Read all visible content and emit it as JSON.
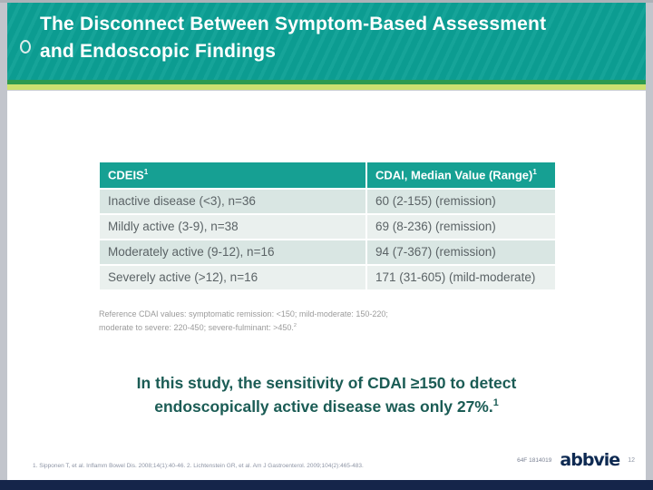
{
  "slide": {
    "title": {
      "line1": "The Disconnect Between Symptom-Based Assessment",
      "line2": "and Endoscopic Findings"
    },
    "table": {
      "columns": [
        {
          "label": "CDEIS",
          "sup": "1"
        },
        {
          "label": "CDAI, Median Value (Range)",
          "sup": "1"
        }
      ],
      "rows": [
        {
          "cdeis": "Inactive disease (<3), n=36",
          "cdai": "60 (2-155) (remission)"
        },
        {
          "cdeis": "Mildly active (3-9), n=38",
          "cdai": "69 (8-236) (remission)"
        },
        {
          "cdeis": "Moderately active (9-12), n=16",
          "cdai": "94 (7-367) (remission)"
        },
        {
          "cdeis": "Severely active (>12), n=16",
          "cdai": "171 (31-605) (mild-moderate)"
        }
      ]
    },
    "reference_note": {
      "line1": "Reference CDAI values: symptomatic remission: <150; mild-moderate: 150-220;",
      "line2": "moderate to severe: 220-450; severe-fulminant: >450.",
      "sup": "2"
    },
    "statement": {
      "line1": "In this study, the sensitivity of CDAI ≥150 to detect",
      "line2": "endoscopically active disease was only 27%.",
      "sup": "1"
    },
    "footer": {
      "citation": "1. Sipponen T, et al. Inflamm Bowel Dis. 2008;14(1):40-46. 2. Lichtenstein GR, et al. Am J Gastroenterol. 2009;104(2):465-483.",
      "job_code": "64F 1814019",
      "logo_text": "abbvie",
      "page_number": "12"
    },
    "colors": {
      "header_teal": "#0da095",
      "table_header_teal": "#16a093",
      "row_odd": "#d9e6e3",
      "row_even": "#eaf0ee",
      "accent_green": "#2e9b4f",
      "accent_lime": "#cde170",
      "statement_teal": "#1b5c55",
      "footer_navy": "#15254a"
    }
  }
}
